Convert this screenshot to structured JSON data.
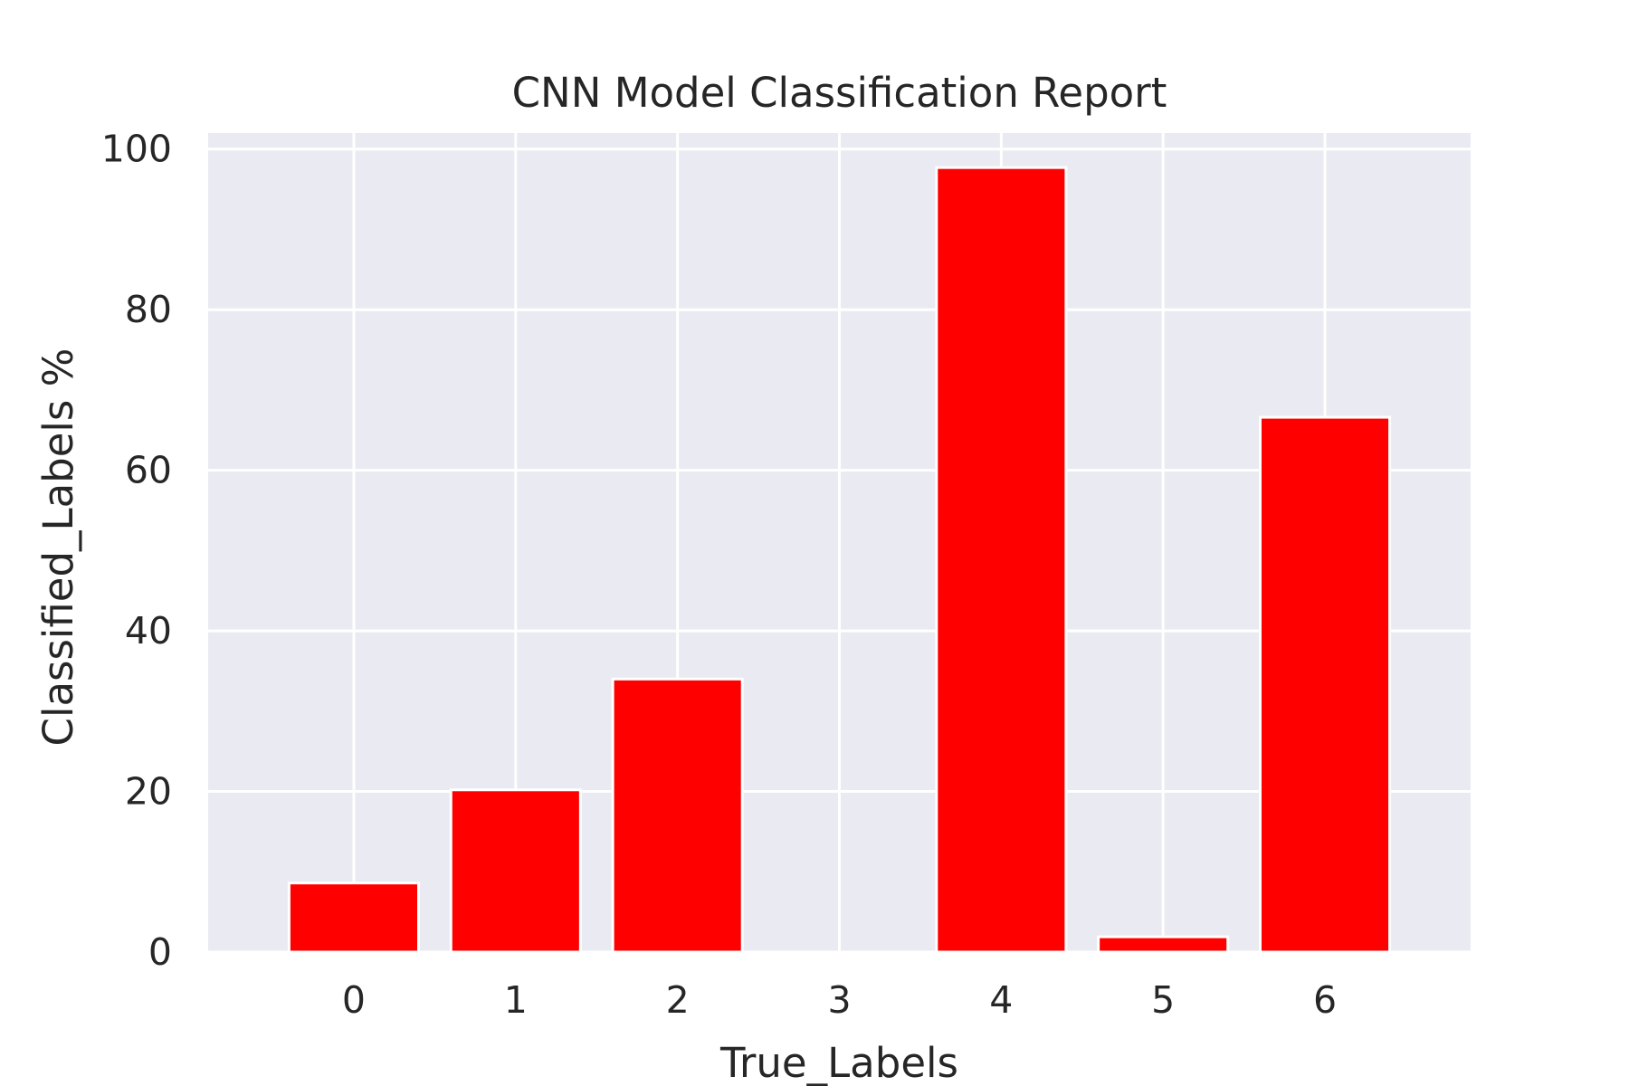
{
  "chart_data": {
    "type": "bar",
    "title": "CNN Model Classification Report",
    "xlabel": "True_Labels",
    "ylabel": "Classified_Labels %",
    "categories": [
      "0",
      "1",
      "2",
      "3",
      "4",
      "5",
      "6"
    ],
    "values": [
      8.6,
      20.2,
      34.0,
      0,
      97.7,
      1.9,
      66.6
    ],
    "ylim": [
      0,
      102
    ],
    "yticks": [
      "0",
      "20",
      "40",
      "60",
      "80",
      "100"
    ],
    "grid": true,
    "colors": {
      "bar": "#ff0000",
      "background": "#eaeaf2",
      "grid": "#ffffff",
      "text": "#262626"
    }
  }
}
